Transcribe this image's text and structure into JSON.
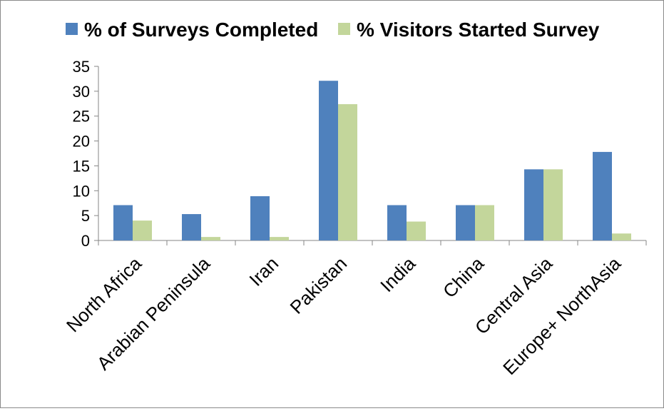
{
  "chart_data": {
    "type": "bar",
    "categories": [
      "North Africa",
      "Arabian Peninsula",
      "Iran",
      "Pakistan",
      "India",
      "China",
      "Central Asia",
      "Europe+ NorthAsia"
    ],
    "series": [
      {
        "name": "% of Surveys Completed",
        "color": "#4f81bd",
        "values": [
          7.1,
          5.3,
          8.9,
          32.1,
          7.1,
          7.1,
          14.3,
          17.8
        ]
      },
      {
        "name": "% Visitors Started Survey",
        "color": "#c3d69b",
        "values": [
          4.0,
          0.7,
          0.7,
          27.4,
          3.8,
          7.1,
          14.3,
          1.4
        ]
      }
    ],
    "ylim": [
      0,
      35
    ],
    "yticks": [
      0,
      5,
      10,
      15,
      20,
      25,
      30,
      35
    ],
    "legend_position": "top",
    "grid": false
  }
}
